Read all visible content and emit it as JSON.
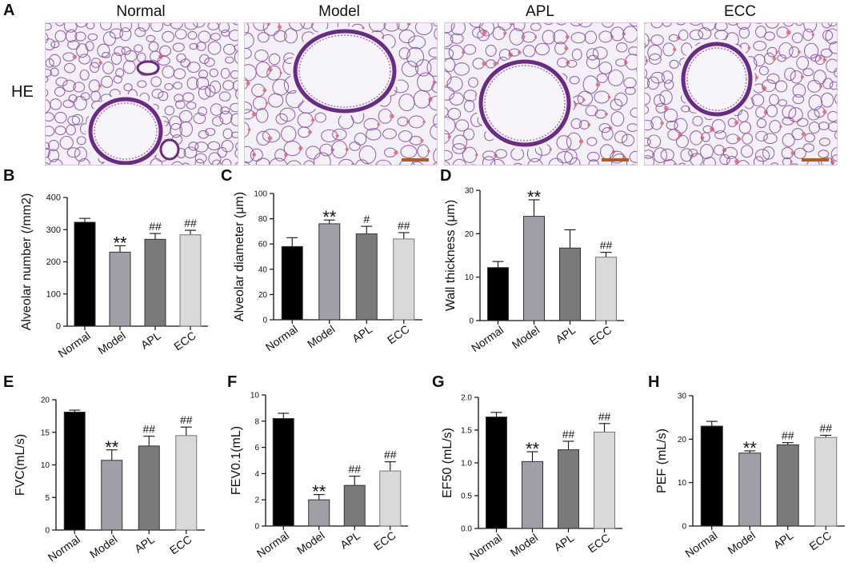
{
  "figure": {
    "panel_a_letter": "A",
    "stain_label": "HE",
    "images": [
      {
        "group": "Normal"
      },
      {
        "group": "Model"
      },
      {
        "group": "APL"
      },
      {
        "group": "ECC"
      }
    ]
  },
  "colors": {
    "Normal": "#000000",
    "Model": "#9f9fa7",
    "APL": "#7a7a7a",
    "ECC": "#d9d9d9",
    "tissue_bg": "#f3f1f7",
    "tissue_stain": "#8b4fa0",
    "rbc": "#e06a78",
    "scale_bar": "#b35b1a"
  },
  "chart_data": [
    {
      "panel": "B",
      "type": "bar",
      "categories": [
        "Normal",
        "Model",
        "APL",
        "ECC"
      ],
      "values": [
        323,
        230,
        270,
        284
      ],
      "errors": [
        12,
        20,
        18,
        14
      ],
      "annotations": [
        "",
        "**",
        "##",
        "##"
      ],
      "ylabel": "Alveolar number (/mm2)",
      "ylim": [
        0,
        400
      ],
      "yticks": [
        0,
        100,
        200,
        300,
        400
      ]
    },
    {
      "panel": "C",
      "type": "bar",
      "categories": [
        "Normal",
        "Model",
        "APL",
        "ECC"
      ],
      "values": [
        58,
        76,
        68,
        64
      ],
      "errors": [
        7,
        3,
        6,
        5
      ],
      "annotations": [
        "",
        "**",
        "#",
        "##"
      ],
      "ylabel": "Alveolar diameter (μm)",
      "ylim": [
        0,
        100
      ],
      "yticks": [
        0,
        20,
        40,
        60,
        80,
        100
      ]
    },
    {
      "panel": "D",
      "type": "bar",
      "categories": [
        "Normal",
        "Model",
        "APL",
        "ECC"
      ],
      "values": [
        12.2,
        24,
        16.7,
        14.6
      ],
      "errors": [
        1.4,
        3.8,
        4.2,
        1.1
      ],
      "annotations": [
        "",
        "**",
        "",
        "##"
      ],
      "ylabel": "Wall thickness (μm)",
      "ylim": [
        0,
        30
      ],
      "yticks": [
        0,
        10,
        20,
        30
      ]
    },
    {
      "panel": "E",
      "type": "bar",
      "categories": [
        "Normal",
        "Model",
        "APL",
        "ECC"
      ],
      "values": [
        18.1,
        10.7,
        12.9,
        14.5
      ],
      "errors": [
        0.3,
        1.6,
        1.5,
        1.3
      ],
      "annotations": [
        "",
        "**",
        "##",
        "##"
      ],
      "ylabel": "FVC(mL/s)",
      "ylim": [
        0,
        20
      ],
      "yticks": [
        0,
        5,
        10,
        15,
        20
      ]
    },
    {
      "panel": "F",
      "type": "bar",
      "categories": [
        "Normal",
        "Model",
        "APL",
        "ECC"
      ],
      "values": [
        8.2,
        2.0,
        3.1,
        4.2
      ],
      "errors": [
        0.4,
        0.4,
        0.7,
        0.7
      ],
      "annotations": [
        "",
        "**",
        "##",
        "##"
      ],
      "ylabel": "FEV0.1(mL)",
      "ylim": [
        0,
        10
      ],
      "yticks": [
        0,
        2,
        4,
        6,
        8,
        10
      ]
    },
    {
      "panel": "G",
      "type": "bar",
      "categories": [
        "Normal",
        "Model",
        "APL",
        "ECC"
      ],
      "values": [
        1.7,
        1.02,
        1.2,
        1.47
      ],
      "errors": [
        0.07,
        0.15,
        0.13,
        0.13
      ],
      "annotations": [
        "",
        "**",
        "##",
        "##"
      ],
      "ylabel": "EF50 (mL/s)",
      "ylim": [
        0,
        2.0
      ],
      "yticks": [
        "0.0",
        "0.5",
        "1.0",
        "1.5",
        "2.0"
      ]
    },
    {
      "panel": "H",
      "type": "bar",
      "categories": [
        "Normal",
        "Model",
        "APL",
        "ECC"
      ],
      "values": [
        23.0,
        16.8,
        18.7,
        20.4
      ],
      "errors": [
        1.1,
        0.5,
        0.5,
        0.5
      ],
      "annotations": [
        "",
        "**",
        "##",
        "##"
      ],
      "ylabel": "PEF (mL/s)",
      "ylim": [
        0,
        30
      ],
      "yticks": [
        0,
        10,
        20,
        30
      ]
    }
  ]
}
